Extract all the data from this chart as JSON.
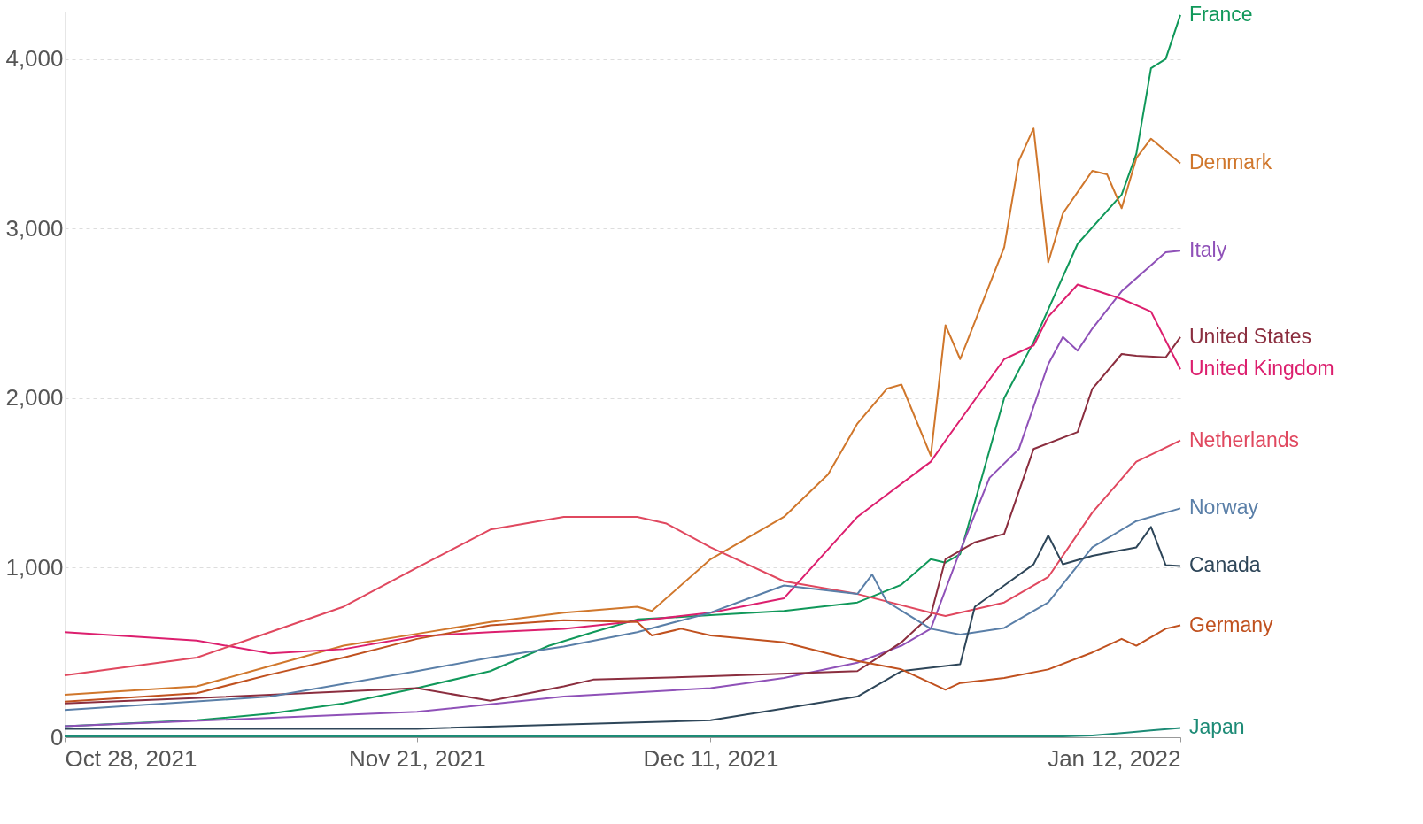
{
  "chart_data": {
    "type": "line",
    "xlim": [
      "2021-10-28",
      "2022-01-12"
    ],
    "ylim": [
      0,
      4280
    ],
    "xticks": [
      {
        "value": "2021-10-28",
        "label": "Oct 28, 2021"
      },
      {
        "value": "2021-11-21",
        "label": "Nov 21, 2021"
      },
      {
        "value": "2021-12-11",
        "label": "Dec 11, 2021"
      },
      {
        "value": "2022-01-12",
        "label": "Jan 12, 2022"
      }
    ],
    "yticks": [
      0,
      {
        "value": 1000,
        "label": "1,000"
      },
      {
        "value": 2000,
        "label": "2,000"
      },
      {
        "value": 3000,
        "label": "3,000"
      },
      {
        "value": 4000,
        "label": "4,000"
      }
    ],
    "grid": "y",
    "legend": false,
    "marker": "none",
    "line_style": "solid",
    "series": [
      {
        "name": "France",
        "color": "#10985a",
        "x": [
          "2021-10-28",
          "2021-11-06",
          "2021-11-11",
          "2021-11-16",
          "2021-11-21",
          "2021-11-26",
          "2021-11-30",
          "2021-12-03",
          "2021-12-06",
          "2021-12-11",
          "2021-12-16",
          "2021-12-21",
          "2021-12-24",
          "2021-12-26",
          "2021-12-27",
          "2021-12-28",
          "2021-12-31",
          "2022-01-02",
          "2022-01-05",
          "2022-01-08",
          "2022-01-09",
          "2022-01-10",
          "2022-01-11",
          "2022-01-12"
        ],
        "values": [
          65,
          100,
          140,
          200,
          290,
          390,
          540,
          620,
          695,
          720,
          745,
          795,
          900,
          1050,
          1030,
          1080,
          2000,
          2330,
          2910,
          3200,
          3440,
          3945,
          4000,
          4260
        ]
      },
      {
        "name": "Denmark",
        "color": "#d0772c",
        "x": [
          "2021-10-28",
          "2021-11-06",
          "2021-11-11",
          "2021-11-16",
          "2021-11-21",
          "2021-11-26",
          "2021-12-01",
          "2021-12-06",
          "2021-12-07",
          "2021-12-11",
          "2021-12-16",
          "2021-12-19",
          "2021-12-21",
          "2021-12-23",
          "2021-12-24",
          "2021-12-26",
          "2021-12-27",
          "2021-12-28",
          "2021-12-31",
          "2022-01-01",
          "2022-01-02",
          "2022-01-03",
          "2022-01-04",
          "2022-01-06",
          "2022-01-07",
          "2022-01-08",
          "2022-01-09",
          "2022-01-10",
          "2022-01-12"
        ],
        "values": [
          250,
          300,
          420,
          540,
          610,
          680,
          735,
          770,
          745,
          1050,
          1300,
          1550,
          1850,
          2055,
          2080,
          1660,
          2430,
          2230,
          2890,
          3400,
          3590,
          2800,
          3090,
          3340,
          3320,
          3120,
          3415,
          3530,
          3385
        ]
      },
      {
        "name": "Italy",
        "color": "#8f51b8",
        "x": [
          "2021-10-28",
          "2021-11-21",
          "2021-12-01",
          "2021-12-11",
          "2021-12-16",
          "2021-12-21",
          "2021-12-24",
          "2021-12-26",
          "2021-12-28",
          "2021-12-30",
          "2022-01-01",
          "2022-01-03",
          "2022-01-04",
          "2022-01-05",
          "2022-01-06",
          "2022-01-08",
          "2022-01-11",
          "2022-01-12"
        ],
        "values": [
          65,
          150,
          240,
          290,
          350,
          440,
          540,
          640,
          1100,
          1530,
          1700,
          2200,
          2360,
          2280,
          2410,
          2630,
          2860,
          2870
        ]
      },
      {
        "name": "United States",
        "color": "#8b2e3f",
        "x": [
          "2021-10-28",
          "2021-11-11",
          "2021-11-21",
          "2021-11-26",
          "2021-12-01",
          "2021-12-03",
          "2021-12-11",
          "2021-12-21",
          "2021-12-24",
          "2021-12-26",
          "2021-12-27",
          "2021-12-29",
          "2021-12-31",
          "2022-01-02",
          "2022-01-05",
          "2022-01-06",
          "2022-01-08",
          "2022-01-09",
          "2022-01-11",
          "2022-01-12"
        ],
        "values": [
          200,
          250,
          290,
          215,
          300,
          340,
          360,
          390,
          560,
          720,
          1050,
          1150,
          1200,
          1700,
          1800,
          2055,
          2260,
          2250,
          2240,
          2360
        ]
      },
      {
        "name": "United Kingdom",
        "color": "#dc1f6e",
        "x": [
          "2021-10-28",
          "2021-11-06",
          "2021-11-11",
          "2021-11-16",
          "2021-11-21",
          "2021-11-26",
          "2021-12-01",
          "2021-12-06",
          "2021-12-11",
          "2021-12-16",
          "2021-12-21",
          "2021-12-26",
          "2021-12-27",
          "2021-12-31",
          "2022-01-02",
          "2022-01-03",
          "2022-01-05",
          "2022-01-08",
          "2022-01-10",
          "2022-01-12"
        ],
        "values": [
          620,
          570,
          495,
          520,
          595,
          620,
          640,
          685,
          735,
          820,
          1300,
          1625,
          1750,
          2230,
          2310,
          2480,
          2670,
          2585,
          2510,
          2170
        ]
      },
      {
        "name": "Netherlands",
        "color": "#e0485f",
        "x": [
          "2021-10-28",
          "2021-11-06",
          "2021-11-16",
          "2021-11-21",
          "2021-11-26",
          "2021-12-01",
          "2021-12-06",
          "2021-12-08",
          "2021-12-11",
          "2021-12-16",
          "2021-12-21",
          "2021-12-26",
          "2021-12-27",
          "2021-12-31",
          "2022-01-03",
          "2022-01-06",
          "2022-01-09",
          "2022-01-12"
        ],
        "values": [
          365,
          470,
          770,
          1000,
          1225,
          1300,
          1300,
          1260,
          1120,
          920,
          845,
          735,
          715,
          795,
          945,
          1325,
          1625,
          1750
        ]
      },
      {
        "name": "Norway",
        "color": "#5a7fa8",
        "x": [
          "2021-10-28",
          "2021-11-11",
          "2021-11-21",
          "2021-11-26",
          "2021-12-01",
          "2021-12-06",
          "2021-12-11",
          "2021-12-13",
          "2021-12-16",
          "2021-12-21",
          "2021-12-22",
          "2021-12-23",
          "2021-12-26",
          "2021-12-28",
          "2021-12-31",
          "2022-01-03",
          "2022-01-06",
          "2022-01-09",
          "2022-01-12"
        ],
        "values": [
          160,
          240,
          390,
          470,
          535,
          620,
          735,
          800,
          895,
          845,
          960,
          800,
          640,
          605,
          645,
          795,
          1120,
          1275,
          1350
        ]
      },
      {
        "name": "Canada",
        "color": "#2e4659",
        "x": [
          "2021-10-28",
          "2021-11-21",
          "2021-12-11",
          "2021-12-16",
          "2021-12-21",
          "2021-12-24",
          "2021-12-28",
          "2021-12-29",
          "2021-12-31",
          "2022-01-02",
          "2022-01-03",
          "2022-01-04",
          "2022-01-06",
          "2022-01-09",
          "2022-01-10",
          "2022-01-11",
          "2022-01-12"
        ],
        "values": [
          50,
          50,
          100,
          170,
          240,
          390,
          430,
          770,
          895,
          1020,
          1190,
          1020,
          1070,
          1120,
          1240,
          1015,
          1010
        ]
      },
      {
        "name": "Germany",
        "color": "#c0511f",
        "x": [
          "2021-10-28",
          "2021-11-06",
          "2021-11-11",
          "2021-11-16",
          "2021-11-21",
          "2021-11-26",
          "2021-12-01",
          "2021-12-06",
          "2021-12-07",
          "2021-12-09",
          "2021-12-11",
          "2021-12-16",
          "2021-12-21",
          "2021-12-24",
          "2021-12-27",
          "2021-12-28",
          "2021-12-31",
          "2022-01-03",
          "2022-01-06",
          "2022-01-08",
          "2022-01-09",
          "2022-01-11",
          "2022-01-12"
        ],
        "values": [
          210,
          260,
          370,
          470,
          580,
          660,
          690,
          680,
          600,
          640,
          600,
          560,
          450,
          400,
          280,
          320,
          350,
          400,
          500,
          580,
          540,
          640,
          660
        ]
      },
      {
        "name": "Japan",
        "color": "#1d8b76",
        "x": [
          "2021-10-28",
          "2022-01-04",
          "2022-01-06",
          "2022-01-08",
          "2022-01-10",
          "2022-01-12"
        ],
        "values": [
          5,
          5,
          10,
          25,
          40,
          55
        ]
      }
    ]
  }
}
